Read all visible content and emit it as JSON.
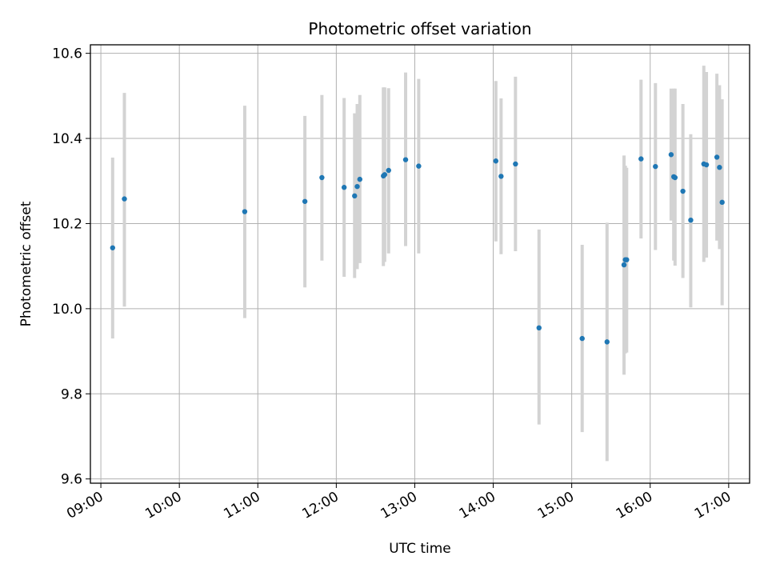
{
  "chart_data": {
    "type": "scatter",
    "title": "Photometric offset variation",
    "xlabel": "UTC time",
    "ylabel": "Photometric offset",
    "x_ticks": [
      "09:00",
      "10:00",
      "11:00",
      "12:00",
      "13:00",
      "14:00",
      "15:00",
      "16:00",
      "17:00"
    ],
    "y_ticks": [
      "9.6",
      "9.8",
      "10.0",
      "10.2",
      "10.4",
      "10.6"
    ],
    "xlim": [
      "08:52",
      "17:16"
    ],
    "ylim": [
      9.59,
      10.62
    ],
    "grid": true,
    "marker_color": "#1f77b4",
    "errorbar_color": "#d3d3d3",
    "series": [
      {
        "points": [
          {
            "t": "09:09",
            "y": 10.143,
            "lo": 9.93,
            "hi": 10.355
          },
          {
            "t": "09:18",
            "y": 10.258,
            "lo": 10.005,
            "hi": 10.507
          },
          {
            "t": "10:50",
            "y": 10.228,
            "lo": 9.978,
            "hi": 10.477
          },
          {
            "t": "11:36",
            "y": 10.252,
            "lo": 10.05,
            "hi": 10.453
          },
          {
            "t": "11:49",
            "y": 10.308,
            "lo": 10.113,
            "hi": 10.502
          },
          {
            "t": "12:06",
            "y": 10.285,
            "lo": 10.075,
            "hi": 10.495
          },
          {
            "t": "12:14",
            "y": 10.265,
            "lo": 10.072,
            "hi": 10.459
          },
          {
            "t": "12:16",
            "y": 10.287,
            "lo": 10.093,
            "hi": 10.481
          },
          {
            "t": "12:18",
            "y": 10.304,
            "lo": 10.107,
            "hi": 10.502
          },
          {
            "t": "12:36",
            "y": 10.312,
            "lo": 10.1,
            "hi": 10.52
          },
          {
            "t": "12:37",
            "y": 10.315,
            "lo": 10.11,
            "hi": 10.52
          },
          {
            "t": "12:40",
            "y": 10.325,
            "lo": 10.13,
            "hi": 10.518
          },
          {
            "t": "12:53",
            "y": 10.35,
            "lo": 10.147,
            "hi": 10.555
          },
          {
            "t": "13:03",
            "y": 10.335,
            "lo": 10.13,
            "hi": 10.54
          },
          {
            "t": "14:02",
            "y": 10.347,
            "lo": 10.158,
            "hi": 10.535
          },
          {
            "t": "14:06",
            "y": 10.311,
            "lo": 10.128,
            "hi": 10.494
          },
          {
            "t": "14:17",
            "y": 10.34,
            "lo": 10.135,
            "hi": 10.545
          },
          {
            "t": "14:35",
            "y": 9.955,
            "lo": 9.728,
            "hi": 10.186
          },
          {
            "t": "15:08",
            "y": 9.93,
            "lo": 9.71,
            "hi": 10.15
          },
          {
            "t": "15:27",
            "y": 9.922,
            "lo": 9.642,
            "hi": 10.202
          },
          {
            "t": "15:40",
            "y": 10.103,
            "lo": 9.845,
            "hi": 10.36
          },
          {
            "t": "15:41",
            "y": 10.115,
            "lo": 9.895,
            "hi": 10.336
          },
          {
            "t": "15:42",
            "y": 10.115,
            "lo": 9.897,
            "hi": 10.331
          },
          {
            "t": "15:53",
            "y": 10.352,
            "lo": 10.165,
            "hi": 10.538
          },
          {
            "t": "16:04",
            "y": 10.334,
            "lo": 10.138,
            "hi": 10.53
          },
          {
            "t": "16:16",
            "y": 10.362,
            "lo": 10.207,
            "hi": 10.517
          },
          {
            "t": "16:18",
            "y": 10.31,
            "lo": 10.113,
            "hi": 10.517
          },
          {
            "t": "16:19",
            "y": 10.308,
            "lo": 10.101,
            "hi": 10.517
          },
          {
            "t": "16:25",
            "y": 10.276,
            "lo": 10.072,
            "hi": 10.481
          },
          {
            "t": "16:31",
            "y": 10.208,
            "lo": 10.003,
            "hi": 10.41
          },
          {
            "t": "16:41",
            "y": 10.34,
            "lo": 10.11,
            "hi": 10.571
          },
          {
            "t": "16:43",
            "y": 10.338,
            "lo": 10.12,
            "hi": 10.556
          },
          {
            "t": "16:51",
            "y": 10.356,
            "lo": 10.16,
            "hi": 10.552
          },
          {
            "t": "16:53",
            "y": 10.332,
            "lo": 10.14,
            "hi": 10.525
          },
          {
            "t": "16:55",
            "y": 10.25,
            "lo": 10.008,
            "hi": 10.492
          }
        ]
      }
    ]
  }
}
